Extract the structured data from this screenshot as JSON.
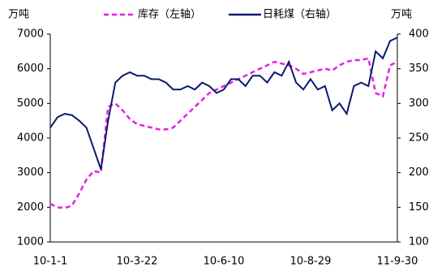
{
  "chart_data": {
    "type": "line",
    "y_label": "万吨",
    "y2_label": "万吨",
    "categories": [
      "10-1-1",
      null,
      null,
      null,
      null,
      null,
      null,
      null,
      null,
      null,
      null,
      null,
      "10-3-22",
      null,
      null,
      null,
      null,
      null,
      null,
      null,
      null,
      null,
      null,
      null,
      "10-6-10",
      null,
      null,
      null,
      null,
      null,
      null,
      null,
      null,
      null,
      null,
      null,
      "10-8-29",
      null,
      null,
      null,
      null,
      null,
      null,
      null,
      null,
      null,
      null,
      null,
      "11-9-30"
    ],
    "series": [
      {
        "name": "库存（左轴）",
        "color": "#e61ee6",
        "dash": true,
        "values": [
          2100,
          2000,
          1980,
          2050,
          2400,
          2800,
          3050,
          3000,
          4900,
          5000,
          4800,
          4550,
          4400,
          4350,
          4300,
          4250,
          4250,
          4300,
          4500,
          4700,
          4900,
          5100,
          5300,
          5400,
          5500,
          5600,
          5700,
          5800,
          5900,
          6000,
          6100,
          6200,
          6150,
          6100,
          6000,
          5850,
          5900,
          5950,
          6000,
          5950,
          6100,
          6200,
          6250,
          6250,
          6300,
          5300,
          5200,
          6100,
          6200
        ]
      },
      {
        "name": "日耗煤（右轴）",
        "color": "#0a1a6b",
        "axis": "y2",
        "values": [
          265,
          280,
          285,
          283,
          275,
          265,
          235,
          205,
          275,
          330,
          340,
          345,
          340,
          340,
          335,
          335,
          330,
          320,
          320,
          325,
          320,
          330,
          325,
          315,
          320,
          335,
          335,
          325,
          340,
          340,
          330,
          345,
          340,
          360,
          330,
          320,
          335,
          320,
          325,
          290,
          300,
          285,
          325,
          330,
          325,
          375,
          365,
          390,
          395
        ]
      }
    ],
    "ylim": [
      1000,
      7000
    ],
    "yticks": [
      1000,
      2000,
      3000,
      4000,
      5000,
      6000,
      7000
    ],
    "y2lim": [
      100,
      400
    ],
    "y2ticks": [
      100,
      150,
      200,
      250,
      300,
      350,
      400
    ]
  }
}
